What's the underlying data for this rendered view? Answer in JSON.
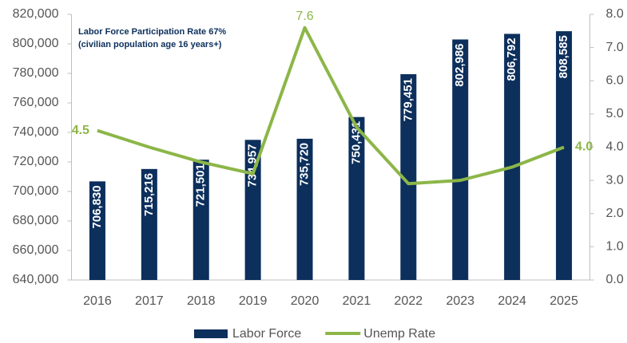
{
  "chart_data": {
    "type": "bar-line",
    "annotation": [
      "Labor Force Participation Rate 67%",
      "(civilian population age 16 years+)"
    ],
    "categories": [
      "2016",
      "2017",
      "2018",
      "2019",
      "2020",
      "2021",
      "2022",
      "2023",
      "2024",
      "2025"
    ],
    "series": [
      {
        "name": "Labor Force",
        "type": "bar",
        "color": "#0c2f5c",
        "axis": "y",
        "values": [
          706830,
          715216,
          721501,
          734957,
          735720,
          750431,
          779451,
          802986,
          806792,
          808585
        ],
        "value_labels": [
          "706,830",
          "715,216",
          "721,501",
          "734,957",
          "735,720",
          "750,431",
          "779,451",
          "802,986",
          "806,792",
          "808,585"
        ]
      },
      {
        "name": "Unemp Rate",
        "type": "line",
        "color": "#8cb648",
        "axis": "y2",
        "values": [
          4.5,
          4.0,
          3.55,
          3.2,
          7.6,
          4.6,
          2.9,
          3.0,
          3.4,
          4.0
        ],
        "value_labels": [
          "4.5",
          null,
          null,
          null,
          "7.6",
          null,
          null,
          null,
          null,
          "4.0"
        ]
      }
    ],
    "ylim": [
      640000,
      820000
    ],
    "yticks": [
      {
        "value": 640000,
        "label": "640,000"
      },
      {
        "value": 660000,
        "label": "660,000"
      },
      {
        "value": 680000,
        "label": "680,000"
      },
      {
        "value": 700000,
        "label": "700,000"
      },
      {
        "value": 720000,
        "label": "720,000"
      },
      {
        "value": 740000,
        "label": "740,000"
      },
      {
        "value": 760000,
        "label": "760,000"
      },
      {
        "value": 780000,
        "label": "780,000"
      },
      {
        "value": 800000,
        "label": "800,000"
      },
      {
        "value": 820000,
        "label": "820,000"
      }
    ],
    "y2lim": [
      0,
      8
    ],
    "y2ticks": [
      {
        "value": 0,
        "label": "0.0"
      },
      {
        "value": 1,
        "label": "1.0"
      },
      {
        "value": 2,
        "label": "2.0"
      },
      {
        "value": 3,
        "label": "3.0"
      },
      {
        "value": 4,
        "label": "4.0"
      },
      {
        "value": 5,
        "label": "5.0"
      },
      {
        "value": 6,
        "label": "6.0"
      },
      {
        "value": 7,
        "label": "7.0"
      },
      {
        "value": 8,
        "label": "8.0"
      }
    ],
    "legend": "bottom"
  }
}
